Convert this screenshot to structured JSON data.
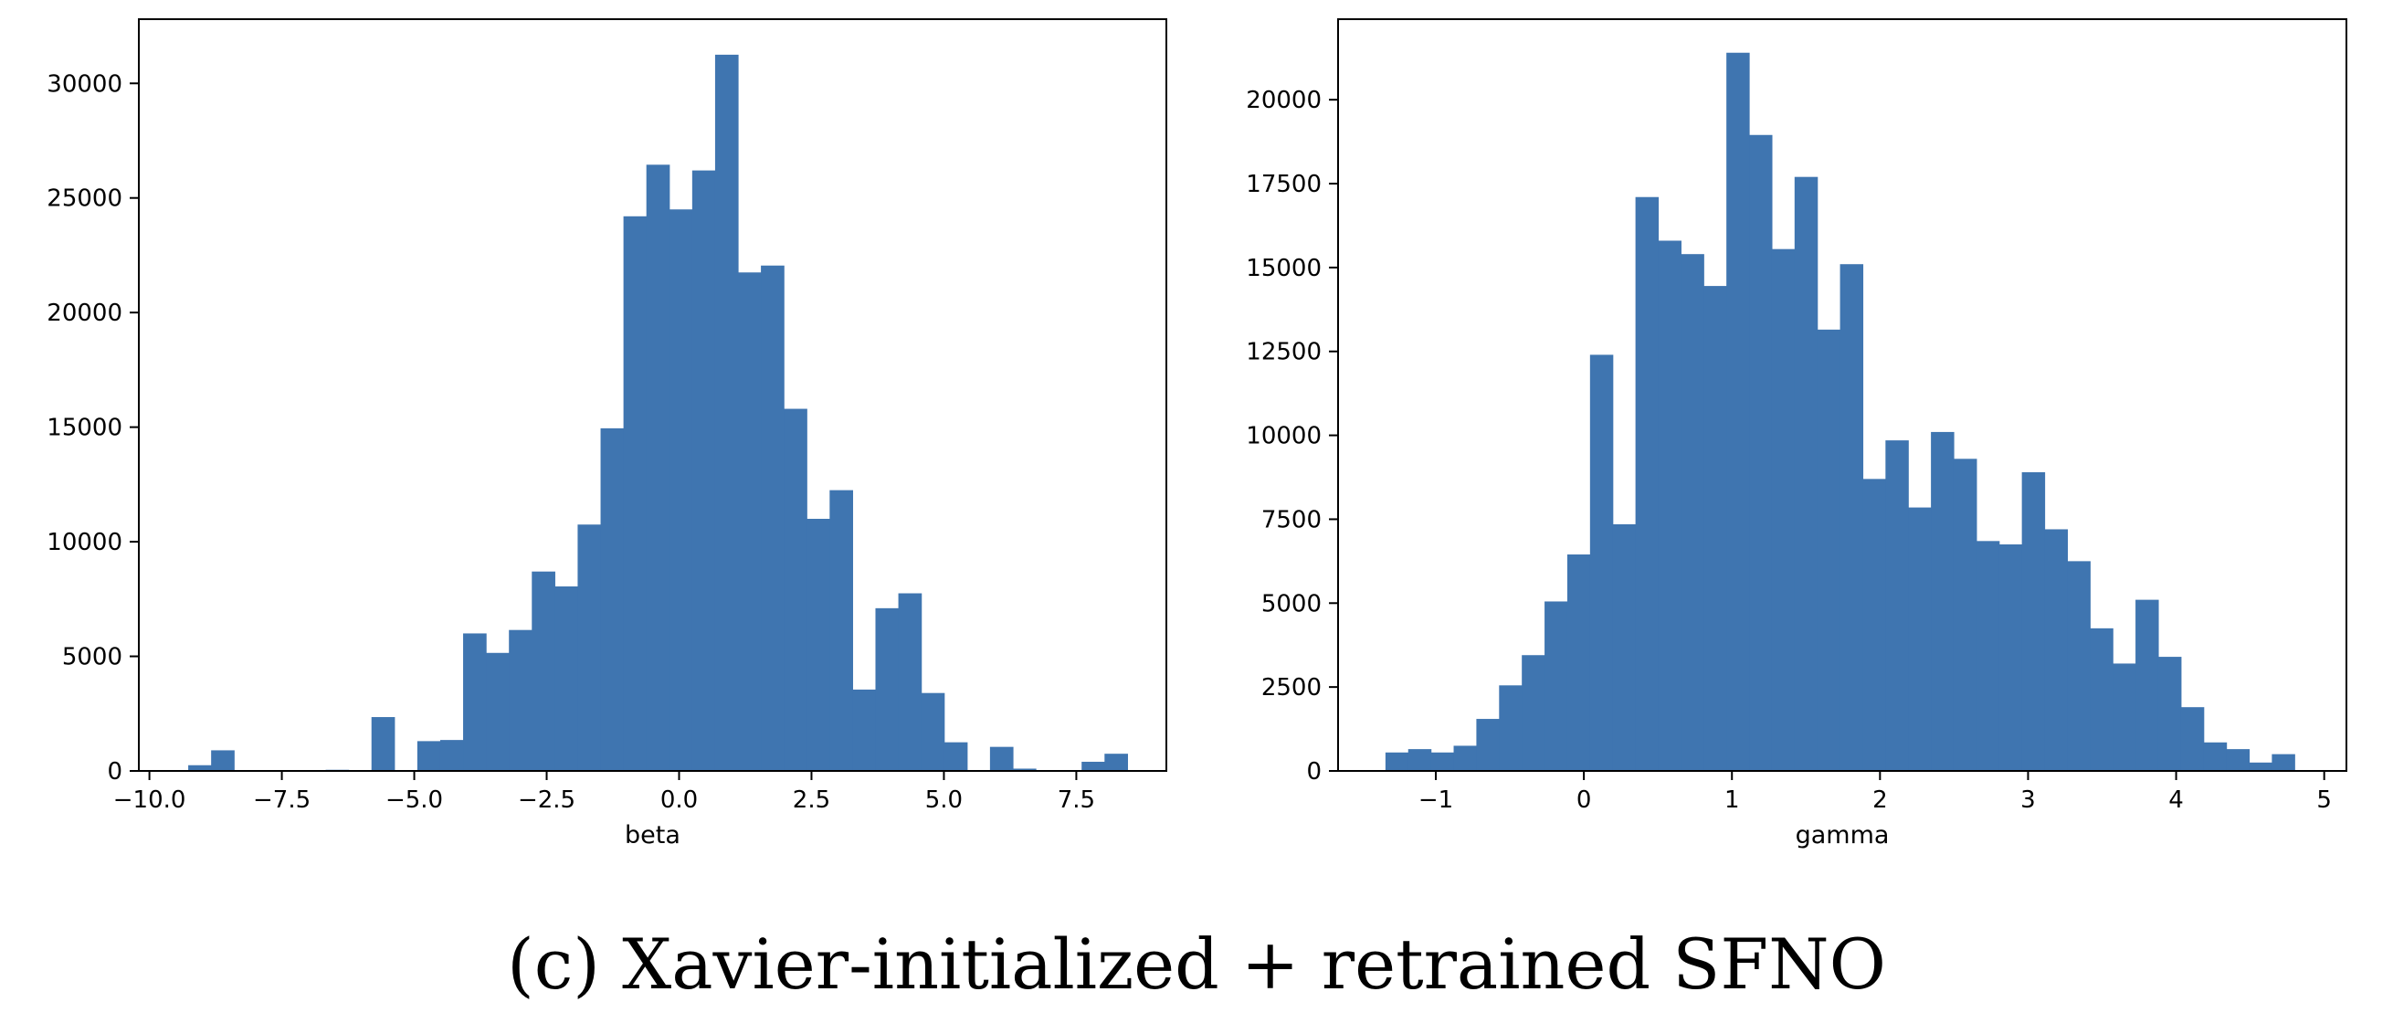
{
  "caption": "(c) Xavier-initialized + retrained SFNO",
  "chart_data": [
    {
      "type": "bar",
      "subtype": "histogram",
      "xlabel": "beta",
      "ylabel": "",
      "xlim": [
        -10.2,
        9.2
      ],
      "ylim": [
        0,
        32800
      ],
      "xticks": [
        -10.0,
        -7.5,
        -5.0,
        -2.5,
        0.0,
        2.5,
        5.0,
        7.5
      ],
      "xtick_labels": [
        "−10.0",
        "−7.5",
        "−5.0",
        "−2.5",
        "0.0",
        "2.5",
        "5.0",
        "7.5"
      ],
      "yticks": [
        0,
        5000,
        10000,
        15000,
        20000,
        25000,
        30000
      ],
      "ytick_labels": [
        "0",
        "5000",
        "10000",
        "15000",
        "20000",
        "25000",
        "30000"
      ],
      "bin_start": -9.7,
      "bin_width": 0.4325,
      "values": [
        30,
        250,
        900,
        0,
        0,
        0,
        0,
        50,
        0,
        2350,
        0,
        1300,
        1350,
        6000,
        5150,
        6150,
        8700,
        8050,
        10750,
        14950,
        24200,
        26450,
        24500,
        26200,
        31250,
        21750,
        22050,
        15800,
        11000,
        12250,
        3550,
        7100,
        7750,
        3400,
        1250,
        0,
        1050,
        100,
        0,
        0,
        400,
        750
      ],
      "color": "#3f75b0",
      "grid": false
    },
    {
      "type": "bar",
      "subtype": "histogram",
      "xlabel": "gamma",
      "ylabel": "",
      "xlim": [
        -1.66,
        5.15
      ],
      "ylim": [
        0,
        22400
      ],
      "xticks": [
        -1,
        0,
        1,
        2,
        3,
        4,
        5
      ],
      "xtick_labels": [
        "−1",
        "0",
        "1",
        "2",
        "3",
        "4",
        "5"
      ],
      "yticks": [
        0,
        2500,
        5000,
        7500,
        10000,
        12500,
        15000,
        17500,
        20000
      ],
      "ytick_labels": [
        "0",
        "2500",
        "5000",
        "7500",
        "10000",
        "12500",
        "15000",
        "17500",
        "20000"
      ],
      "bin_start": -1.34,
      "bin_width": 0.1535,
      "values": [
        550,
        650,
        550,
        750,
        1550,
        2550,
        3450,
        5050,
        6450,
        12400,
        7350,
        17100,
        15800,
        15400,
        14450,
        21400,
        18950,
        15550,
        17700,
        13150,
        15100,
        8700,
        9850,
        7850,
        10100,
        9300,
        6850,
        6750,
        8900,
        7200,
        6250,
        4250,
        3200,
        5100,
        3400,
        1900,
        850,
        650,
        250,
        500
      ],
      "color": "#3f75b0",
      "grid": false
    }
  ]
}
